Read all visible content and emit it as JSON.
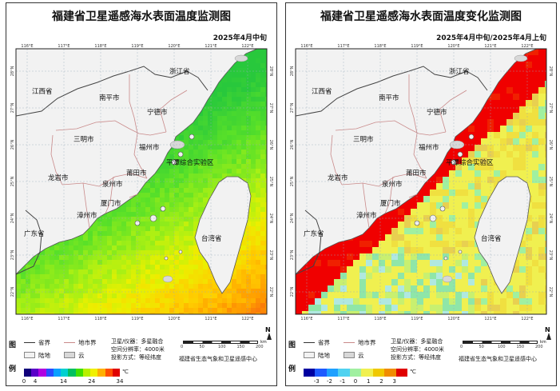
{
  "panels": [
    {
      "title": "福建省卫星遥感海水表面温度监测图",
      "date": "2025年4月中旬",
      "mode": "sst",
      "colorbar": {
        "unit": "℃",
        "labels": [
          "0",
          "4",
          "14",
          "24",
          "34"
        ],
        "colors": [
          "#10007a",
          "#5a00c8",
          "#b000e0",
          "#2a4cff",
          "#0aa0ff",
          "#00d0d0",
          "#00c060",
          "#40e000",
          "#b8f000",
          "#f0f000",
          "#ffb000",
          "#ff5000",
          "#e00000"
        ]
      }
    },
    {
      "title": "福建省卫星遥感海水表面温度变化监测图",
      "date": "2025年4月中旬/2025年4月上旬",
      "mode": "diff",
      "colorbar": {
        "unit": "℃",
        "labels": [
          "-3",
          "-2",
          "-1",
          "0",
          "1",
          "2",
          "3"
        ],
        "colors": [
          "#0000a0",
          "#1e5aff",
          "#1ea0ff",
          "#50d2f0",
          "#a0f0a0",
          "#f0f050",
          "#f0c800",
          "#f08c00",
          "#e00000"
        ]
      }
    }
  ],
  "map": {
    "lon_ticks": [
      "116°E",
      "117°E",
      "118°E",
      "119°E",
      "120°E",
      "121°E",
      "122°E"
    ],
    "lat_ticks": [
      "28°N",
      "27°N",
      "26°N",
      "25°N",
      "24°N",
      "23°N",
      "22°N"
    ],
    "labels": {
      "zhejiang": "浙江省",
      "jiangxi": "江西省",
      "guangdong": "广东省",
      "taiwan": "台湾省",
      "nanping": "南平市",
      "ningde": "宁德市",
      "sanming": "三明市",
      "fuzhou": "福州市",
      "longyan": "龙岩市",
      "putian": "莆田市",
      "quanzhou": "泉州市",
      "xiamen": "厦门市",
      "zhangzhou": "漳州市",
      "pingtan": "平潭综合实验区"
    }
  },
  "legend": {
    "title_top": "图",
    "title_bottom": "例",
    "province": "省界",
    "city": "地市界",
    "land": "陆地",
    "cloud": "云",
    "sat_info": "卫星/仪器：多星融合",
    "resolution": "空间分辨率：4000米",
    "projection": "投影方式：等经纬度",
    "scale_label": "km",
    "scale_ticks": [
      "0",
      "50",
      "100",
      "150",
      "200"
    ],
    "center": "福建省生态气象和卫星遥感中心",
    "north": "N"
  }
}
